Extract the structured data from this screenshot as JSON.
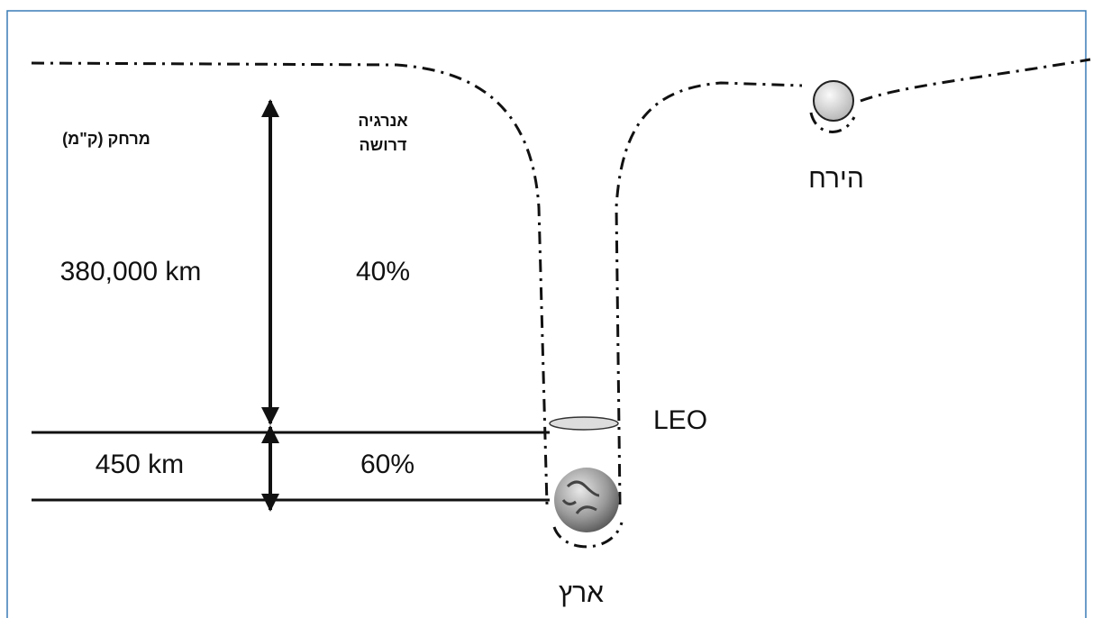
{
  "headers": {
    "distance": "מרחק (ק\"מ)",
    "energy": [
      "אנרגיה",
      "דרושה"
    ]
  },
  "rows": [
    {
      "distance": "380,000 km",
      "energy": "40%"
    },
    {
      "distance": "450 km",
      "energy": "60%"
    }
  ],
  "labels": {
    "leo": "LEO",
    "earth": "ארץ",
    "moon": "הירח"
  }
}
